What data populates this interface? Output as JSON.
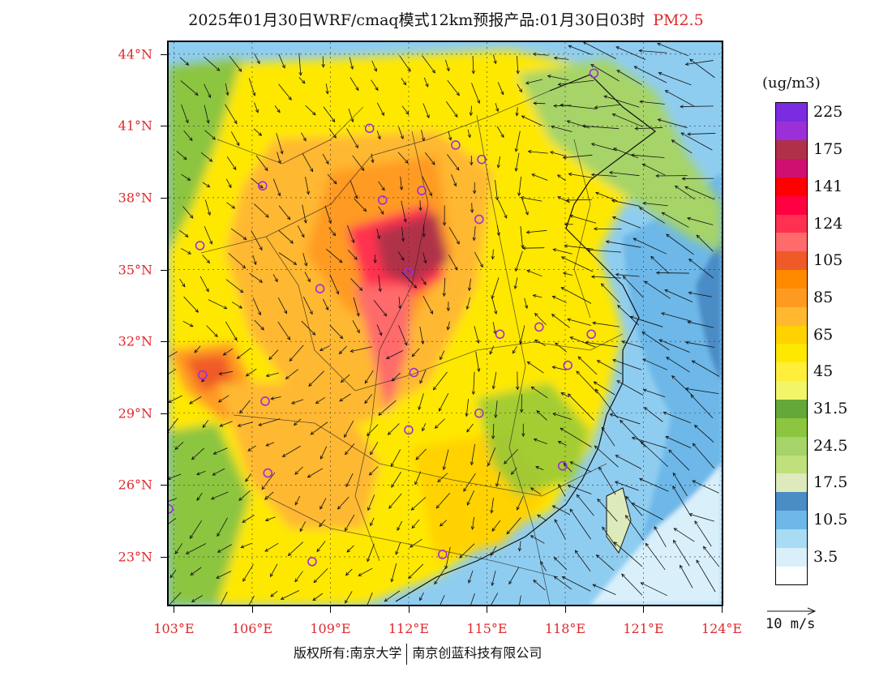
{
  "title": {
    "main": "2025年01月30日WRF/cmaq模式12km预报产品:01月30日03时",
    "variable": "PM2.5"
  },
  "axes": {
    "lat_labels": [
      {
        "text": "44°N",
        "lat": 44
      },
      {
        "text": "41°N",
        "lat": 41
      },
      {
        "text": "38°N",
        "lat": 38
      },
      {
        "text": "35°N",
        "lat": 35
      },
      {
        "text": "32°N",
        "lat": 32
      },
      {
        "text": "29°N",
        "lat": 29
      },
      {
        "text": "26°N",
        "lat": 26
      },
      {
        "text": "23°N",
        "lat": 23
      }
    ],
    "lon_labels": [
      {
        "text": "103°E",
        "lon": 103
      },
      {
        "text": "106°E",
        "lon": 106
      },
      {
        "text": "109°E",
        "lon": 109
      },
      {
        "text": "112°E",
        "lon": 112
      },
      {
        "text": "115°E",
        "lon": 115
      },
      {
        "text": "118°E",
        "lon": 118
      },
      {
        "text": "121°E",
        "lon": 121
      },
      {
        "text": "124°E",
        "lon": 124
      }
    ],
    "lat_range": [
      21,
      44.5
    ],
    "lon_range": [
      102.8,
      124
    ]
  },
  "colorbar": {
    "unit": "(ug/m3)",
    "levels": [
      {
        "label": "",
        "color": "#ffffff"
      },
      {
        "label": "3.5",
        "color": "#d9f0fb"
      },
      {
        "label": "",
        "color": "#a8dcf4"
      },
      {
        "label": "10.5",
        "color": "#6db8e8"
      },
      {
        "label": "",
        "color": "#4a8cc6"
      },
      {
        "label": "17.5",
        "color": "#dceabc"
      },
      {
        "label": "",
        "color": "#bfe07a"
      },
      {
        "label": "24.5",
        "color": "#a6d468"
      },
      {
        "label": "",
        "color": "#8cc53f"
      },
      {
        "label": "31.5",
        "color": "#64a83a"
      },
      {
        "label": "",
        "color": "#f2f56a"
      },
      {
        "label": "45",
        "color": "#ffef3a"
      },
      {
        "label": "",
        "color": "#ffe800"
      },
      {
        "label": "65",
        "color": "#ffd200"
      },
      {
        "label": "",
        "color": "#ffb830"
      },
      {
        "label": "85",
        "color": "#ff9a20"
      },
      {
        "label": "",
        "color": "#ff8a00"
      },
      {
        "label": "105",
        "color": "#f05a28"
      },
      {
        "label": "",
        "color": "#ff6a6a"
      },
      {
        "label": "124",
        "color": "#ff3050"
      },
      {
        "label": "",
        "color": "#ff0040"
      },
      {
        "label": "141",
        "color": "#ff0000"
      },
      {
        "label": "",
        "color": "#d01070"
      },
      {
        "label": "175",
        "color": "#b0304a"
      },
      {
        "label": "",
        "color": "#9b30d8"
      },
      {
        "label": "225",
        "color": "#7b2be0"
      }
    ]
  },
  "wind_reference": {
    "label": "10 m/s"
  },
  "colors": {
    "ocean": "#8fcdf0",
    "accent_red": "#e0282d",
    "city_marker": "#9b30d8"
  },
  "cities": [
    {
      "lon": 119.1,
      "lat": 43.2
    },
    {
      "lon": 110.5,
      "lat": 40.9
    },
    {
      "lon": 113.8,
      "lat": 40.2
    },
    {
      "lon": 114.8,
      "lat": 39.6
    },
    {
      "lon": 106.4,
      "lat": 38.5
    },
    {
      "lon": 111.0,
      "lat": 37.9
    },
    {
      "lon": 112.5,
      "lat": 38.3
    },
    {
      "lon": 114.7,
      "lat": 37.1
    },
    {
      "lon": 104.0,
      "lat": 36.0
    },
    {
      "lon": 108.6,
      "lat": 34.2
    },
    {
      "lon": 112.0,
      "lat": 34.9
    },
    {
      "lon": 115.5,
      "lat": 32.3
    },
    {
      "lon": 117.0,
      "lat": 32.6
    },
    {
      "lon": 119.0,
      "lat": 32.3
    },
    {
      "lon": 118.1,
      "lat": 31.0
    },
    {
      "lon": 104.1,
      "lat": 30.6
    },
    {
      "lon": 112.2,
      "lat": 30.7
    },
    {
      "lon": 106.5,
      "lat": 29.5
    },
    {
      "lon": 114.7,
      "lat": 29.0
    },
    {
      "lon": 112.0,
      "lat": 28.3
    },
    {
      "lon": 106.6,
      "lat": 26.5
    },
    {
      "lon": 117.9,
      "lat": 26.8
    },
    {
      "lon": 102.8,
      "lat": 25.0
    },
    {
      "lon": 108.3,
      "lat": 22.8
    },
    {
      "lon": 113.3,
      "lat": 23.1
    }
  ],
  "copyright": {
    "left": "版权所有:南京大学",
    "right": "南京创蓝科技有限公司"
  }
}
